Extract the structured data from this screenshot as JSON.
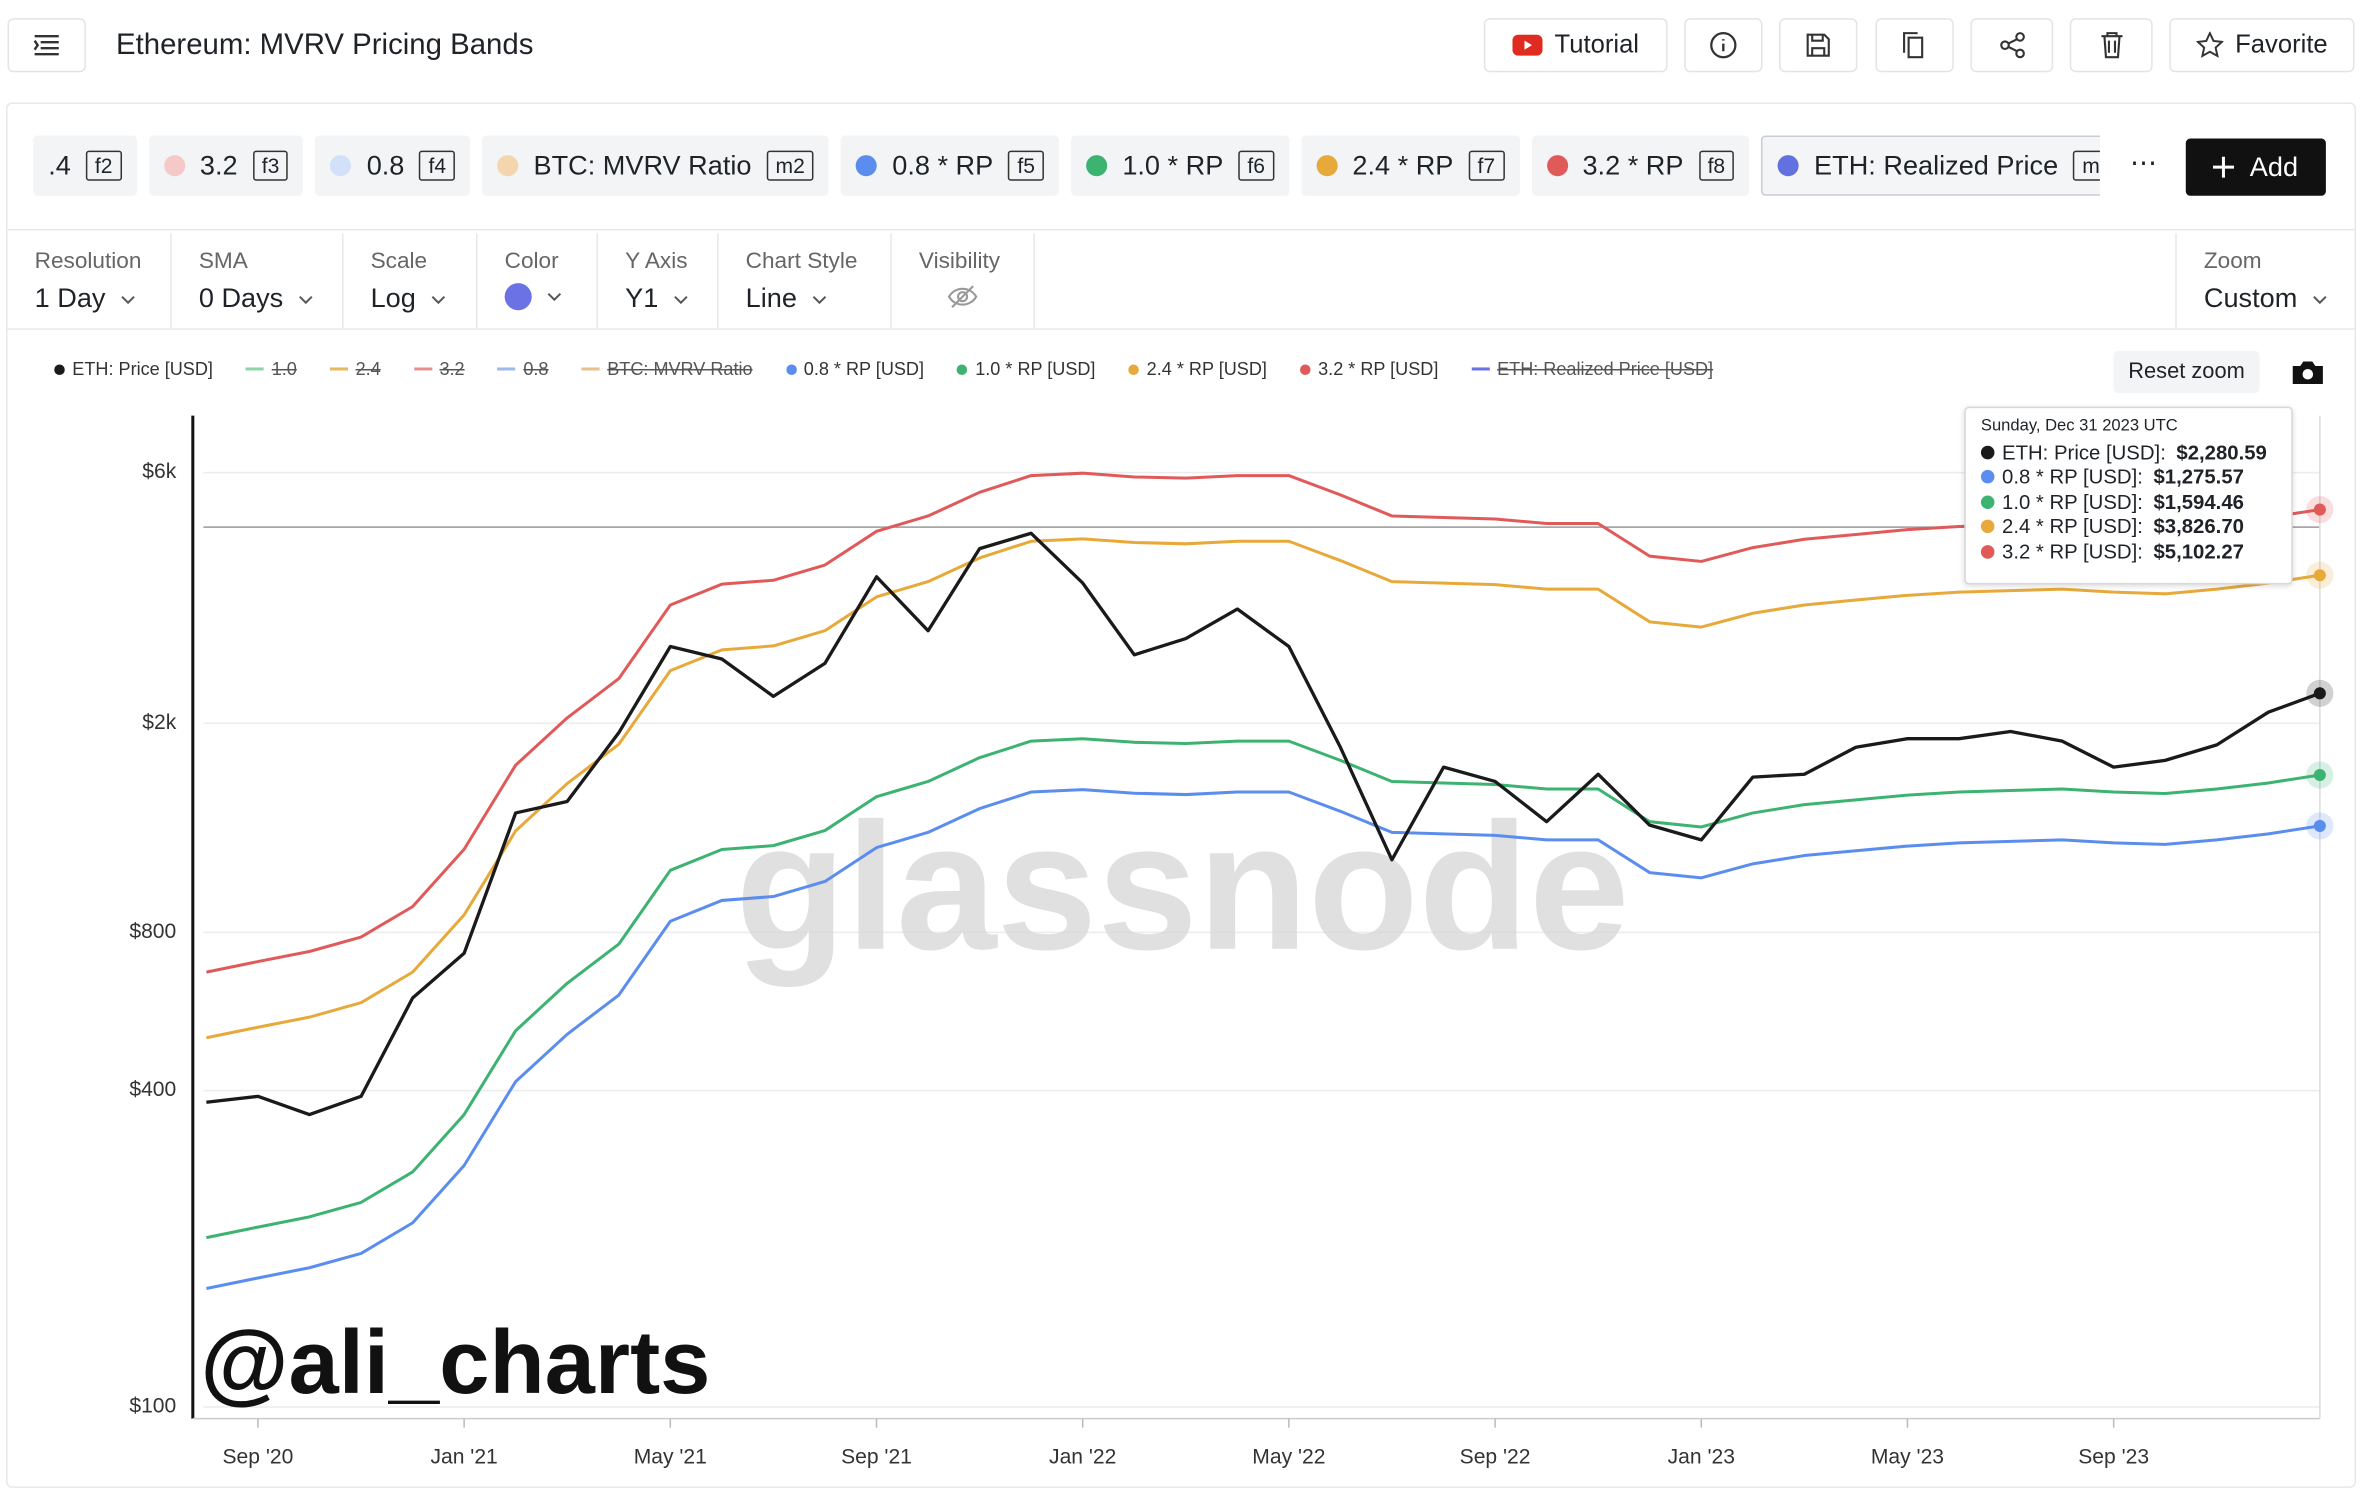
{
  "header": {
    "title": "Ethereum: MVRV Pricing Bands",
    "tutorial": "Tutorial",
    "favorite": "Favorite"
  },
  "metrics": [
    {
      "label": ".4",
      "key": "f2"
    },
    {
      "label": "3.2",
      "key": "f3",
      "color": "#f6c9c9"
    },
    {
      "label": "0.8",
      "key": "f4",
      "color": "#d3e0fa"
    },
    {
      "label": "BTC: MVRV Ratio",
      "key": "m2",
      "color": "#f3d6ae"
    },
    {
      "label": "0.8 * RP",
      "key": "f5",
      "color": "#5b8def"
    },
    {
      "label": "1.0 * RP",
      "key": "f6",
      "color": "#3cb371"
    },
    {
      "label": "2.4 * RP",
      "key": "f7",
      "color": "#e8a93b"
    },
    {
      "label": "3.2 * RP",
      "key": "f8",
      "color": "#e05a5a"
    },
    {
      "label": "ETH: Realized Price",
      "key": "m3",
      "color": "#6270e0",
      "selected": true
    }
  ],
  "more_label": "⋯",
  "add_label": "Add",
  "controls": [
    {
      "label": "Resolution",
      "value": "1 Day"
    },
    {
      "label": "SMA",
      "value": "0 Days"
    },
    {
      "label": "Scale",
      "value": "Log"
    },
    {
      "label": "Color",
      "color": "#6b72e3"
    },
    {
      "label": "Y Axis",
      "value": "Y1"
    },
    {
      "label": "Chart Style",
      "value": "Line"
    },
    {
      "label": "Visibility"
    }
  ],
  "zoom": {
    "label": "Zoom",
    "value": "Custom"
  },
  "reset_zoom": "Reset zoom",
  "chart_data": {
    "type": "line",
    "yscale": "log",
    "grid": true,
    "x": [
      "2020-08",
      "2020-09",
      "2020-10",
      "2020-11",
      "2020-12",
      "2021-01",
      "2021-02",
      "2021-03",
      "2021-04",
      "2021-05",
      "2021-06",
      "2021-07",
      "2021-08",
      "2021-09",
      "2021-10",
      "2021-11",
      "2021-12",
      "2022-01",
      "2022-02",
      "2022-03",
      "2022-04",
      "2022-05",
      "2022-06",
      "2022-07",
      "2022-08",
      "2022-09",
      "2022-10",
      "2022-11",
      "2022-12",
      "2023-01",
      "2023-02",
      "2023-03",
      "2023-04",
      "2023-05",
      "2023-06",
      "2023-07",
      "2023-08",
      "2023-09",
      "2023-10",
      "2023-11",
      "2023-12",
      "2024-01"
    ],
    "xlim": [
      "2020-08",
      "2024-01"
    ],
    "xticks": [
      {
        "value": "2020-09",
        "label": "Sep '20"
      },
      {
        "value": "2021-01",
        "label": "Jan '21"
      },
      {
        "value": "2021-05",
        "label": "May '21"
      },
      {
        "value": "2021-09",
        "label": "Sep '21"
      },
      {
        "value": "2022-01",
        "label": "Jan '22"
      },
      {
        "value": "2022-05",
        "label": "May '22"
      },
      {
        "value": "2022-09",
        "label": "Sep '22"
      },
      {
        "value": "2023-01",
        "label": "Jan '23"
      },
      {
        "value": "2023-05",
        "label": "May '23"
      },
      {
        "value": "2023-09",
        "label": "Sep '23"
      }
    ],
    "ylim": [
      95,
      7700
    ],
    "yticks": [
      {
        "value": 100,
        "label": "$100"
      },
      {
        "value": 400,
        "label": "$400"
      },
      {
        "value": 800,
        "label": "$800"
      },
      {
        "value": 2000,
        "label": "$2k"
      },
      {
        "value": 6000,
        "label": "$6k"
      }
    ],
    "series": [
      {
        "name": "ETH: Price [USD]",
        "color": "#1a1a1a",
        "values": [
          380,
          390,
          360,
          390,
          600,
          730,
          1350,
          1420,
          1920,
          2800,
          2650,
          2250,
          2600,
          3800,
          3000,
          4300,
          4600,
          3700,
          2700,
          2900,
          3300,
          2800,
          1800,
          1100,
          1650,
          1550,
          1300,
          1600,
          1280,
          1200,
          1580,
          1600,
          1800,
          1870,
          1870,
          1930,
          1850,
          1650,
          1700,
          1820,
          2100,
          2280.59
        ]
      },
      {
        "name": "0.8 * RP [USD]",
        "color": "#5b8def",
        "values": [
          168,
          176,
          184,
          196,
          224,
          288,
          416,
          512,
          608,
          840,
          920,
          936,
          1000,
          1160,
          1240,
          1376,
          1480,
          1496,
          1472,
          1464,
          1480,
          1480,
          1360,
          1240,
          1232,
          1224,
          1200,
          1200,
          1040,
          1016,
          1080,
          1120,
          1144,
          1168,
          1184,
          1192,
          1200,
          1184,
          1176,
          1200,
          1232,
          1275.57
        ]
      },
      {
        "name": "1.0 * RP [USD]",
        "color": "#3cb371",
        "values": [
          210,
          220,
          230,
          245,
          280,
          360,
          520,
          640,
          760,
          1050,
          1150,
          1170,
          1250,
          1450,
          1550,
          1720,
          1850,
          1870,
          1840,
          1830,
          1850,
          1850,
          1700,
          1550,
          1540,
          1530,
          1500,
          1500,
          1300,
          1270,
          1350,
          1400,
          1430,
          1460,
          1480,
          1490,
          1500,
          1480,
          1470,
          1500,
          1540,
          1594.46
        ]
      },
      {
        "name": "2.4 * RP [USD]",
        "color": "#e8a93b",
        "values": [
          504,
          528,
          552,
          588,
          672,
          864,
          1248,
          1536,
          1824,
          2520,
          2760,
          2808,
          3000,
          3480,
          3720,
          4128,
          4440,
          4488,
          4416,
          4392,
          4440,
          4440,
          4080,
          3720,
          3696,
          3672,
          3600,
          3600,
          3120,
          3048,
          3240,
          3360,
          3432,
          3504,
          3552,
          3576,
          3600,
          3552,
          3528,
          3600,
          3696,
          3826.7
        ]
      },
      {
        "name": "3.2 * RP [USD]",
        "color": "#e05a5a",
        "values": [
          672,
          704,
          736,
          784,
          896,
          1152,
          1664,
          2048,
          2432,
          3360,
          3680,
          3744,
          4000,
          4640,
          4960,
          5504,
          5920,
          5984,
          5888,
          5856,
          5920,
          5920,
          5440,
          4960,
          4928,
          4896,
          4800,
          4800,
          4160,
          4064,
          4320,
          4480,
          4576,
          4672,
          4736,
          4768,
          4800,
          4736,
          4704,
          4800,
          4928,
          5102.27
        ]
      }
    ],
    "hidden_series": [
      {
        "name": "1.0",
        "color": "#8fd3a8"
      },
      {
        "name": "2.4",
        "color": "#e8b860"
      },
      {
        "name": "3.2",
        "color": "#e89090"
      },
      {
        "name": "0.8",
        "color": "#9fb8ef"
      },
      {
        "name": "BTC: MVRV Ratio",
        "color": "#e8c08a"
      },
      {
        "name": "ETH: Realized Price [USD]",
        "color": "#6b72e3"
      }
    ],
    "tooltip": {
      "title": "Sunday, Dec 31 2023 UTC",
      "items": [
        {
          "label": "ETH: Price [USD]:",
          "value": "$2,280.59"
        },
        {
          "label": "0.8 * RP [USD]:",
          "value": "$1,275.57"
        },
        {
          "label": "1.0 * RP [USD]:",
          "value": "$1,594.46"
        },
        {
          "label": "2.4 * RP [USD]:",
          "value": "$3,826.70"
        },
        {
          "label": "3.2 * RP [USD]:",
          "value": "$5,102.27"
        }
      ]
    },
    "watermark": "glassnode",
    "signature": "@ali_charts"
  }
}
